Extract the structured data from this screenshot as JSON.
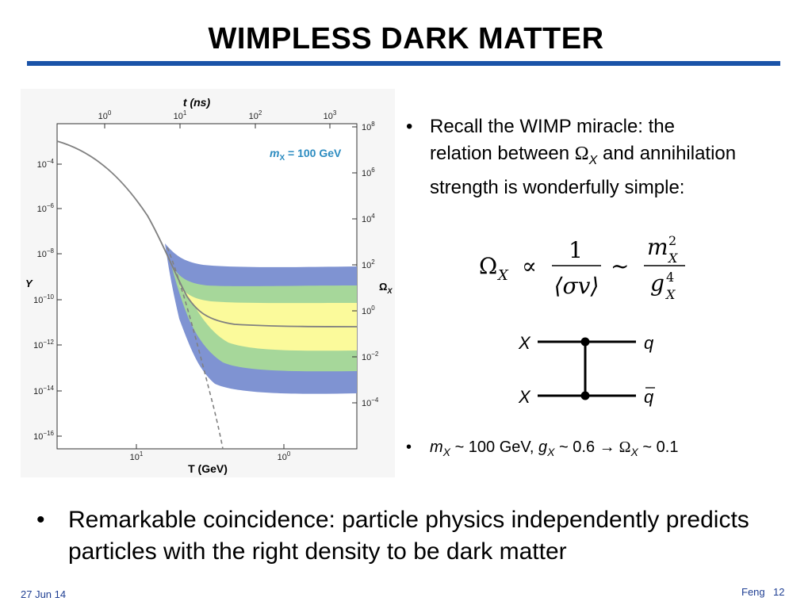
{
  "slide": {
    "title": "WIMPLESS DARK MATTER",
    "bullet1_parts": [
      "Recall the WIMP miracle: the relation between ",
      "Ω",
      "X",
      " and annihilation strength is wonderfully simple:"
    ],
    "bullet2_parts": [
      "m",
      "X",
      " ~ 100 GeV, ",
      "g",
      "X",
      " ~ 0.6 ",
      "→",
      " Ω",
      "X",
      " ~ 0.1"
    ],
    "bottom_bullet": "Remarkable coincidence: particle physics independently predicts particles with the right density to be dark matter",
    "footer_date": "27 Jun 14",
    "footer_author": "Feng",
    "page_number": "12",
    "bullet_char": "•"
  },
  "formula": {
    "lhs": "Ω",
    "lhs_sub": "X",
    "prop": "∝",
    "num": "1",
    "den": "⟨σv⟩",
    "sim": "~",
    "m": "m",
    "m_sup": "2",
    "m_sub": "X",
    "g": "g",
    "g_sup": "4",
    "g_sub": "X"
  },
  "diagram": {
    "left_top": "X",
    "left_bottom": "X",
    "right_top": "q",
    "right_bottom": "q"
  },
  "figure": {
    "top_axis_label": "t (ns)",
    "top_ticks": [
      {
        "b": "10",
        "e": "0"
      },
      {
        "b": "10",
        "e": "1"
      },
      {
        "b": "10",
        "e": "2"
      },
      {
        "b": "10",
        "e": "3"
      }
    ],
    "bottom_axis_label": "T (GeV)",
    "bottom_ticks": [
      {
        "b": "10",
        "e": "1"
      },
      {
        "b": "10",
        "e": "0"
      }
    ],
    "left_axis_label": "Y",
    "left_ticks": [
      {
        "b": "10",
        "e": "−4"
      },
      {
        "b": "10",
        "e": "−6"
      },
      {
        "b": "10",
        "e": "−8"
      },
      {
        "b": "10",
        "e": "−10"
      },
      {
        "b": "10",
        "e": "−12"
      },
      {
        "b": "10",
        "e": "−14"
      },
      {
        "b": "10",
        "e": "−16"
      }
    ],
    "right_axis_label": "Ω",
    "right_axis_label_sub": "X",
    "right_ticks": [
      {
        "b": "10",
        "e": "8"
      },
      {
        "b": "10",
        "e": "6"
      },
      {
        "b": "10",
        "e": "4"
      },
      {
        "b": "10",
        "e": "2"
      },
      {
        "b": "10",
        "e": "0"
      },
      {
        "b": "10",
        "e": "−2"
      },
      {
        "b": "10",
        "e": "−4"
      }
    ],
    "legend_m": "m",
    "legend_sub": "X",
    "legend_rest": " = 100 GeV",
    "colors": {
      "blue": "#7f93d2",
      "green": "#a6d79a",
      "yellow": "#fbfa9b",
      "curve": "#808080",
      "legend": "#2b8bc0"
    }
  }
}
